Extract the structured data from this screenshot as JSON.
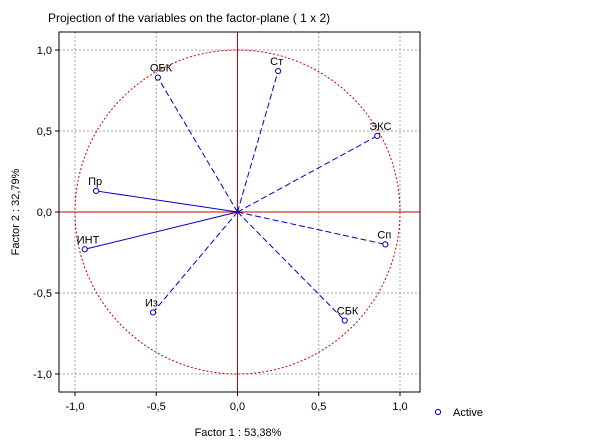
{
  "chart_data": {
    "type": "scatter",
    "title": "Projection of the variables on the factor-plane (  1 x   2)",
    "xlabel": "Factor 1 : 53,38%",
    "ylabel": "Factor 2 : 32,79%",
    "xlim": [
      -1.0,
      1.0
    ],
    "ylim": [
      -1.0,
      1.0
    ],
    "xticks": [
      -1.0,
      -0.5,
      0.0,
      0.5,
      1.0
    ],
    "yticks": [
      -1.0,
      -0.5,
      0.0,
      0.5,
      1.0
    ],
    "xtick_labels": [
      "-1,0",
      "-0,5",
      "0,0",
      "0,5",
      "1,0"
    ],
    "ytick_labels": [
      "-1,0",
      "-0,5",
      "0,0",
      "0,5",
      "1,0"
    ],
    "grid": true,
    "unit_circle": true,
    "legend_position": "bottom-right",
    "colors": {
      "series": "#0000cc",
      "axes": "#cc0000",
      "circle": "#cc0000",
      "grid": "#a0a0a0"
    },
    "series": [
      {
        "name": "Active",
        "points": [
          {
            "label": "ОБК",
            "x": -0.49,
            "y": 0.83
          },
          {
            "label": "Ст",
            "x": 0.25,
            "y": 0.87
          },
          {
            "label": "ЭКС",
            "x": 0.86,
            "y": 0.47
          },
          {
            "label": "Пр",
            "x": -0.87,
            "y": 0.13
          },
          {
            "label": "Сп",
            "x": 0.91,
            "y": -0.2
          },
          {
            "label": "ИНТ",
            "x": -0.94,
            "y": -0.23
          },
          {
            "label": "Из",
            "x": -0.52,
            "y": -0.62
          },
          {
            "label": "СБК",
            "x": 0.66,
            "y": -0.67
          }
        ]
      }
    ]
  }
}
